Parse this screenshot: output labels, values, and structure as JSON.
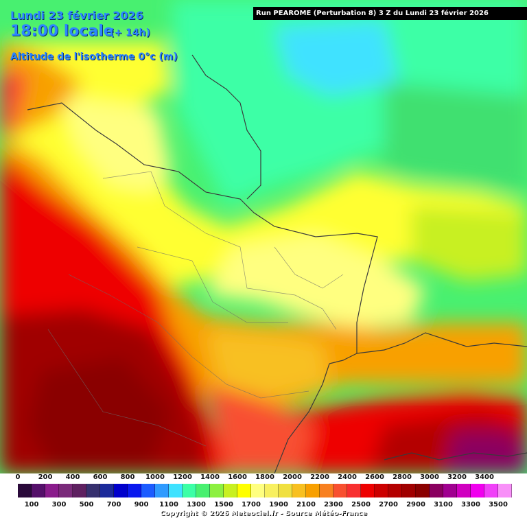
{
  "header": {
    "date": "Lundi 23 février 2026",
    "time": "18:00 locale",
    "lead": "(+ 14h)",
    "parameter": "Altitude de l'isotherme 0°c (m)",
    "run": "Run PEAROME (Perturbation 8) 3 Z du Lundi 23 février 2026"
  },
  "legend": {
    "labels_top": [
      "0",
      "200",
      "400",
      "600",
      "800",
      "1000",
      "1200",
      "1400",
      "1600",
      "1800",
      "2000",
      "2200",
      "2400",
      "2600",
      "2800",
      "3000",
      "3200",
      "3400"
    ],
    "labels_bottom": [
      "100",
      "300",
      "500",
      "700",
      "900",
      "1100",
      "1300",
      "1500",
      "1700",
      "1900",
      "2100",
      "2300",
      "2500",
      "2700",
      "2900",
      "3100",
      "3300",
      "3500"
    ],
    "colors": [
      "#2a0a3a",
      "#55106a",
      "#8a1c8c",
      "#7a2a7a",
      "#5e2060",
      "#36306e",
      "#1b2a9a",
      "#0000cc",
      "#0a18ee",
      "#1c5cff",
      "#2f9bff",
      "#3fe2ff",
      "#3cffa6",
      "#48f070",
      "#8cf040",
      "#c8f020",
      "#ffff00",
      "#ffff80",
      "#f8f060",
      "#f0e040",
      "#f8c020",
      "#f8a000",
      "#f88020",
      "#f85030",
      "#f83030",
      "#ee0000",
      "#cc0000",
      "#b40000",
      "#a00000",
      "#8a0000",
      "#8a0060",
      "#a00090",
      "#d000c0",
      "#f000ee",
      "#f040f8",
      "#f890f8"
    ]
  },
  "footer": {
    "copyright": "Copyright © 2026 Meteociel.fr - Source Météo-France"
  }
}
